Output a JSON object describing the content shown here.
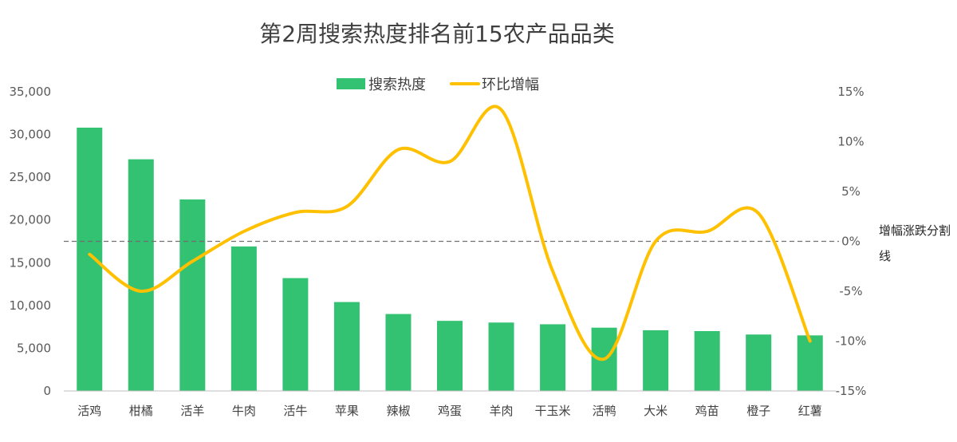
{
  "chart_data": {
    "type": "bar",
    "title": "第2周搜索热度排名前15农产品品类",
    "categories": [
      "活鸡",
      "柑橘",
      "活羊",
      "牛肉",
      "活牛",
      "苹果",
      "辣椒",
      "鸡蛋",
      "羊肉",
      "干玉米",
      "活鸭",
      "大米",
      "鸡苗",
      "橙子",
      "红薯"
    ],
    "series": [
      {
        "name": "搜索热度",
        "chart": "bar",
        "axis": "left",
        "color": "#33C172",
        "values": [
          30800,
          27100,
          22400,
          16900,
          13200,
          10400,
          9000,
          8200,
          8000,
          7800,
          7400,
          7100,
          7000,
          6600,
          6500
        ]
      },
      {
        "name": "环比增幅",
        "chart": "line",
        "smooth": true,
        "axis": "right",
        "color": "#FFC000",
        "values": [
          -1.3,
          -5.0,
          -2.0,
          1.0,
          2.9,
          3.5,
          9.2,
          8.0,
          13.2,
          -3.0,
          -11.8,
          0.0,
          1.0,
          2.8,
          -10.0
        ]
      }
    ],
    "y_left": {
      "min": 0,
      "max": 35000,
      "tick_labels": [
        "0",
        "5,000",
        "10,000",
        "15,000",
        "20,000",
        "25,000",
        "30,000",
        "35,000"
      ]
    },
    "y_right": {
      "min": -15,
      "max": 15,
      "tick_labels": [
        "-15%",
        "-10%",
        "-5%",
        "0%",
        "5%",
        "10%",
        "15%"
      ]
    },
    "reference_line": {
      "value": 0,
      "axis": "right",
      "style": "dashed",
      "color": "#707070",
      "label": "增幅涨跌分割线"
    },
    "legend": {
      "position": "top-center"
    },
    "grid": false
  }
}
